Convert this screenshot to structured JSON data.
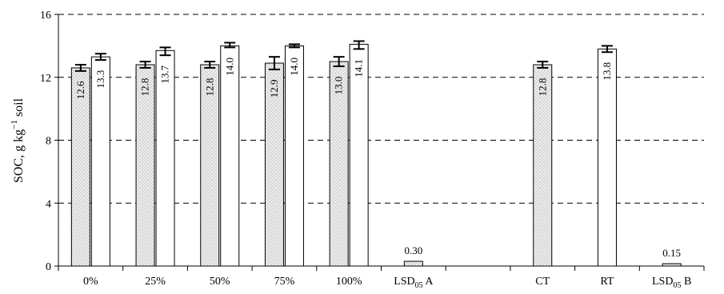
{
  "chart_data": {
    "type": "bar",
    "ylabel": {
      "main": "SOC, g kg",
      "sup": "−1",
      "tail": " soil"
    },
    "ylim": [
      0,
      16
    ],
    "yticks": [
      "0",
      "4",
      "8",
      "12",
      "16"
    ],
    "grid": "dashed horizontal",
    "colors": {
      "stippled": "#e6e6e6",
      "plain": "#ffffff",
      "outline": "#000000"
    },
    "groups": [
      {
        "label": "0%",
        "bars": [
          {
            "fill": "stippled",
            "value": 12.6,
            "label": "12.6",
            "err": [
              12.4,
              12.8
            ]
          },
          {
            "fill": "plain",
            "value": 13.3,
            "label": "13.3",
            "err": [
              13.1,
              13.5
            ]
          }
        ]
      },
      {
        "label": "25%",
        "bars": [
          {
            "fill": "stippled",
            "value": 12.8,
            "label": "12.8",
            "err": [
              12.6,
              13.0
            ]
          },
          {
            "fill": "plain",
            "value": 13.7,
            "label": "13.7",
            "err": [
              13.4,
              13.9
            ]
          }
        ]
      },
      {
        "label": "50%",
        "bars": [
          {
            "fill": "stippled",
            "value": 12.8,
            "label": "12.8",
            "err": [
              12.6,
              13.0
            ]
          },
          {
            "fill": "plain",
            "value": 14.0,
            "label": "14.0",
            "err": [
              13.9,
              14.2
            ]
          }
        ]
      },
      {
        "label": "75%",
        "bars": [
          {
            "fill": "stippled",
            "value": 12.9,
            "label": "12.9",
            "err": [
              12.5,
              13.3
            ]
          },
          {
            "fill": "plain",
            "value": 14.0,
            "label": "14.0",
            "err": [
              13.9,
              14.1
            ]
          }
        ]
      },
      {
        "label": "100%",
        "bars": [
          {
            "fill": "stippled",
            "value": 13.0,
            "label": "13.0",
            "err": [
              12.7,
              13.3
            ]
          },
          {
            "fill": "plain",
            "value": 14.1,
            "label": "14.1",
            "err": [
              13.8,
              14.3
            ]
          }
        ]
      },
      {
        "label": "LSD",
        "sub": "05",
        "tail": " A",
        "bars": [
          {
            "fill": "stippled",
            "value": 0.3,
            "label": "0.30",
            "labelAbove": true
          }
        ]
      },
      {
        "label": "",
        "bars": []
      },
      {
        "label": "CT",
        "bars": [
          {
            "fill": "stippled",
            "value": 12.8,
            "label": "12.8",
            "err": [
              12.6,
              13.0
            ]
          }
        ]
      },
      {
        "label": "RT",
        "bars": [
          {
            "fill": "plain",
            "value": 13.8,
            "label": "13.8",
            "err": [
              13.6,
              14.0
            ]
          }
        ]
      },
      {
        "label": "LSD",
        "sub": "05",
        "tail": " B",
        "bars": [
          {
            "fill": "stippled",
            "value": 0.15,
            "label": "0.15",
            "labelAbove": true
          }
        ]
      }
    ]
  }
}
